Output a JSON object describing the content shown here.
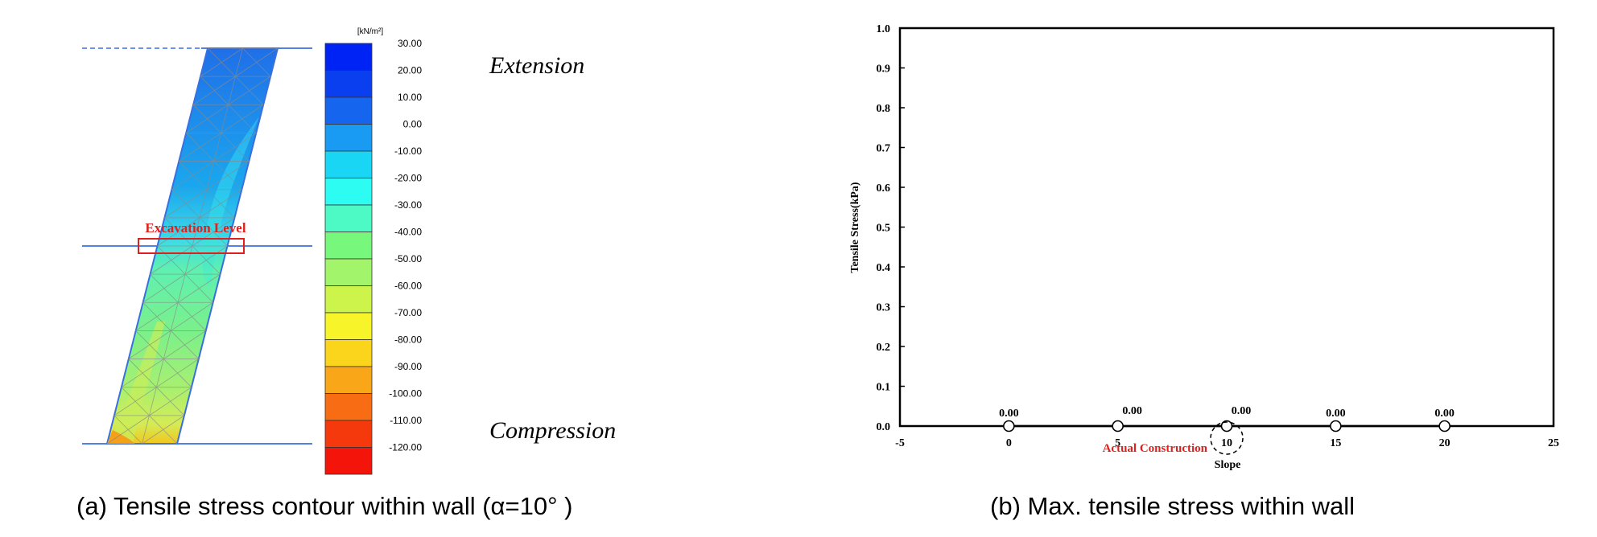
{
  "panel_a": {
    "legend_unit": "[kN/m²]",
    "legend": [
      {
        "label": "30.00",
        "color": "#0023f5"
      },
      {
        "label": "20.00",
        "color": "#0a3ff0"
      },
      {
        "label": "10.00",
        "color": "#1565ef"
      },
      {
        "label": "0.00",
        "color": "#1a9bf3"
      },
      {
        "label": "-10.00",
        "color": "#19d6f4"
      },
      {
        "label": "-20.00",
        "color": "#2cfcf2"
      },
      {
        "label": "-30.00",
        "color": "#4dfac5"
      },
      {
        "label": "-40.00",
        "color": "#78f77d"
      },
      {
        "label": "-50.00",
        "color": "#a2f56a"
      },
      {
        "label": "-60.00",
        "color": "#cdf44a"
      },
      {
        "label": "-70.00",
        "color": "#f7f52a"
      },
      {
        "label": "-80.00",
        "color": "#fad51c"
      },
      {
        "label": "-90.00",
        "color": "#f9a618"
      },
      {
        "label": "-100.00",
        "color": "#f86d13"
      },
      {
        "label": "-110.00",
        "color": "#f6390d"
      },
      {
        "label": "-120.00",
        "color": "#f4140a"
      }
    ],
    "extension_label": "Extension",
    "compression_label": "Compression",
    "excavation_label": "Excavation Level",
    "excavation_color": "#e0201c",
    "caption": "(a) Tensile stress contour within wall (α=10° )"
  },
  "panel_b": {
    "caption": "(b) Max. tensile stress within wall",
    "actual_construction_label": "Actual Construction",
    "actual_construction_color": "#e0201c"
  },
  "chart_data": {
    "type": "line",
    "title": "",
    "xlabel": "Slope",
    "ylabel": "Tensile Stress(kPa)",
    "xlim": [
      -5,
      25
    ],
    "ylim": [
      0.0,
      1.0
    ],
    "x_ticks": [
      "-5",
      "0",
      "5",
      "10",
      "15",
      "20",
      "25"
    ],
    "y_ticks": [
      "0.0",
      "0.1",
      "0.2",
      "0.3",
      "0.4",
      "0.5",
      "0.6",
      "0.7",
      "0.8",
      "0.9",
      "1.0"
    ],
    "grid": false,
    "series": [
      {
        "x": [
          0,
          5,
          10,
          15,
          20
        ],
        "y": [
          0.0,
          0.0,
          0.0,
          0.0,
          0.0
        ],
        "labels": [
          "0.00",
          "0.00",
          "0.00",
          "0.00",
          "0.00"
        ]
      }
    ],
    "highlight_x": 10
  }
}
